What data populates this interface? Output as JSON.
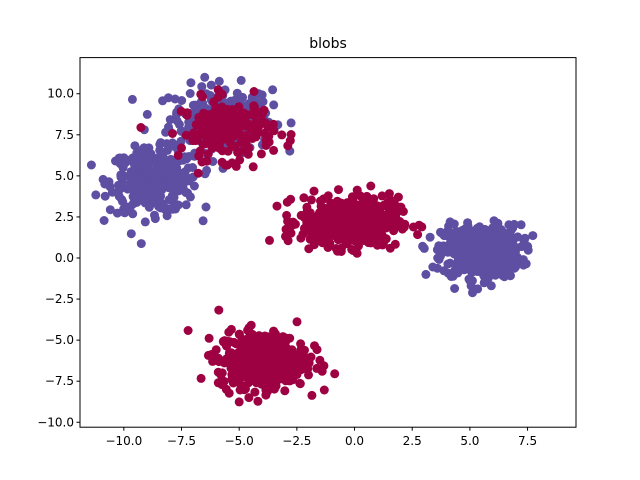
{
  "chart_data": {
    "type": "scatter",
    "title": "blobs",
    "xlabel": "",
    "ylabel": "",
    "xlim": [
      -11.9,
      9.6
    ],
    "ylim": [
      -10.3,
      12.2
    ],
    "xticks": [
      -10.0,
      -7.5,
      -5.0,
      -2.5,
      0.0,
      2.5,
      5.0,
      7.5
    ],
    "xtick_labels": [
      "−10.0",
      "−7.5",
      "−5.0",
      "−2.5",
      "0.0",
      "2.5",
      "5.0",
      "7.5"
    ],
    "yticks": [
      -10.0,
      -7.5,
      -5.0,
      -2.5,
      0.0,
      2.5,
      5.0,
      7.5,
      10.0
    ],
    "ytick_labels": [
      "−10.0",
      "−7.5",
      "−5.0",
      "−2.5",
      "0.0",
      "2.5",
      "5.0",
      "7.5",
      "10.0"
    ],
    "grid": false,
    "legend": "none",
    "series": [
      {
        "color": "#5e4fa2",
        "clusters": [
          {
            "center": [
              -5.8,
              8.5
            ],
            "spread": [
              1.1,
              1.0
            ],
            "count": 250
          },
          {
            "center": [
              -8.7,
              4.7
            ],
            "spread": [
              0.95,
              0.95
            ],
            "count": 320
          },
          {
            "center": [
              5.5,
              0.4
            ],
            "spread": [
              0.85,
              0.8
            ],
            "count": 500
          }
        ]
      },
      {
        "color": "#9e0142",
        "clusters": [
          {
            "center": [
              -5.5,
              7.8
            ],
            "spread": [
              1.0,
              0.9
            ],
            "count": 200
          },
          {
            "center": [
              -0.2,
              2.2
            ],
            "spread": [
              1.05,
              0.75
            ],
            "count": 500
          },
          {
            "center": [
              -4.0,
              -6.2
            ],
            "spread": [
              0.95,
              0.85
            ],
            "count": 500
          }
        ]
      }
    ]
  }
}
